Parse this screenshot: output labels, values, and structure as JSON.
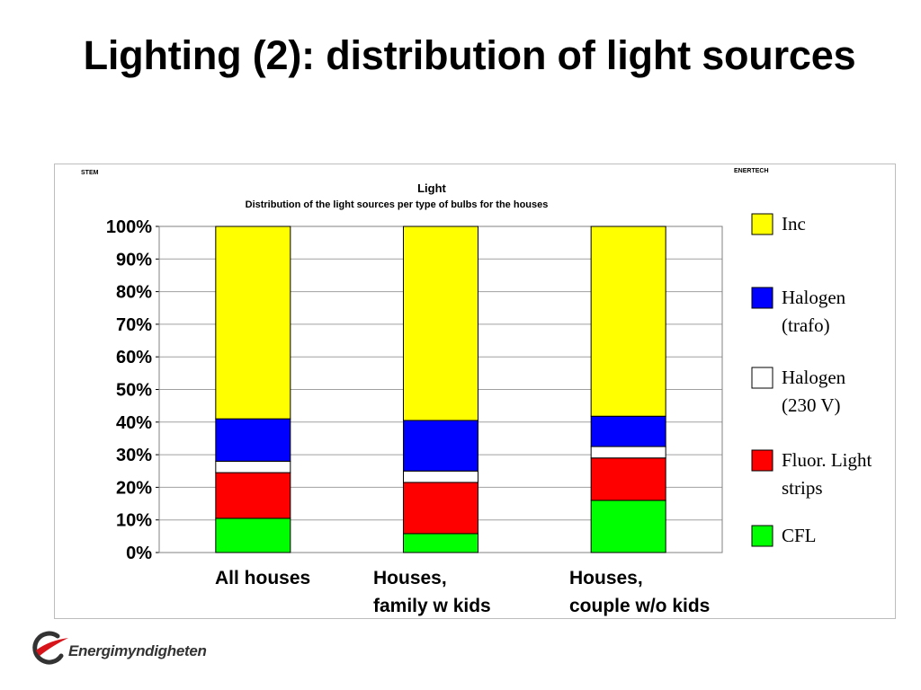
{
  "slide": {
    "title": "Lighting (2): distribution of light sources",
    "logo_text": "Energimyndigheten"
  },
  "chart_data": {
    "type": "bar",
    "stacked": true,
    "corner_left": "STEM",
    "corner_right": "ENERTECH",
    "title": "Light",
    "subtitle": "Distribution of the light sources per type of bulbs for the houses",
    "xlabel": "",
    "ylabel": "",
    "ylim": [
      0,
      100
    ],
    "y_ticks": [
      "0%",
      "10%",
      "20%",
      "30%",
      "40%",
      "50%",
      "60%",
      "70%",
      "80%",
      "90%",
      "100%"
    ],
    "grid": true,
    "legend_position": "right",
    "categories": [
      [
        "All houses"
      ],
      [
        "Houses,",
        "family w kids"
      ],
      [
        "Houses,",
        "couple w/o kids"
      ]
    ],
    "series": [
      {
        "name": "CFL",
        "color": "#00ff00",
        "values": [
          10.5,
          5.8,
          16.0
        ]
      },
      {
        "name": "Fluor. Light strips",
        "color": "#ff0000",
        "values": [
          14.0,
          15.7,
          13.0
        ]
      },
      {
        "name": "Halogen (230 V)",
        "color": "#ffffff",
        "values": [
          3.5,
          3.5,
          3.5
        ]
      },
      {
        "name": "Halogen (trafo)",
        "color": "#0000ff",
        "values": [
          13.0,
          15.5,
          9.3
        ]
      },
      {
        "name": "Inc",
        "color": "#ffff00",
        "values": [
          59.0,
          59.5,
          58.2
        ]
      }
    ],
    "legend": [
      {
        "series": "Inc",
        "color": "#ffff00",
        "lines": [
          "Inc"
        ]
      },
      {
        "series": "Halogen (trafo)",
        "color": "#0000ff",
        "lines": [
          "Halogen",
          "(trafo)"
        ]
      },
      {
        "series": "Halogen (230 V)",
        "color": "#ffffff",
        "lines": [
          "Halogen",
          "(230 V)"
        ]
      },
      {
        "series": "Fluor. Light strips",
        "color": "#ff0000",
        "lines": [
          "Fluor. Light",
          "strips"
        ]
      },
      {
        "series": "CFL",
        "color": "#00ff00",
        "lines": [
          "CFL"
        ]
      }
    ]
  }
}
